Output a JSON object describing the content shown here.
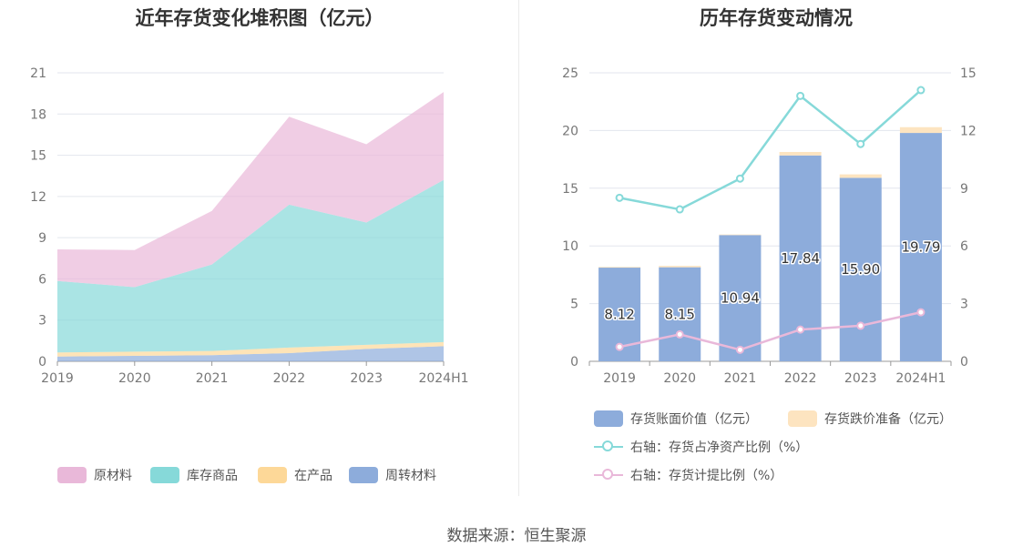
{
  "left_title": "近年存货变化堆积图（亿元）",
  "right_title": "历年存货变动情况",
  "source": "数据来源：恒生聚源",
  "chart_data": [
    {
      "type": "area",
      "title": "近年存货变化堆积图（亿元）",
      "categories": [
        "2019",
        "2020",
        "2021",
        "2022",
        "2023",
        "2024H1"
      ],
      "yticks": [
        "0",
        "3",
        "6",
        "9",
        "12",
        "15",
        "18",
        "21"
      ],
      "ylim": [
        0,
        21
      ],
      "stacked": true,
      "series": [
        {
          "name": "原材料",
          "color": "#e9b8d9",
          "values": [
            2.3,
            2.7,
            3.9,
            6.4,
            5.7,
            6.4
          ]
        },
        {
          "name": "库存商品",
          "color": "#86d9d9",
          "values": [
            5.2,
            4.7,
            6.3,
            10.4,
            8.9,
            11.8
          ]
        },
        {
          "name": "在产品",
          "color": "#fdd898",
          "values": [
            0.3,
            0.3,
            0.3,
            0.4,
            0.3,
            0.3
          ]
        },
        {
          "name": "周转材料",
          "color": "#8dacdb",
          "values": [
            0.35,
            0.4,
            0.45,
            0.6,
            0.9,
            1.1
          ]
        }
      ],
      "legend_position": "bottom",
      "grid": true
    },
    {
      "type": "bar",
      "title": "历年存货变动情况",
      "categories": [
        "2019",
        "2020",
        "2021",
        "2022",
        "2023",
        "2024H1"
      ],
      "yticks_left": [
        "0",
        "5",
        "10",
        "15",
        "20",
        "25"
      ],
      "yticks_right": [
        "0",
        "3",
        "6",
        "9",
        "12",
        "15"
      ],
      "ylim_left": [
        0,
        25
      ],
      "ylim_right": [
        0,
        15
      ],
      "series": [
        {
          "name": "存货账面价值（亿元）",
          "kind": "bar",
          "axis": "left",
          "color": "#8dacdb",
          "values": [
            8.12,
            8.15,
            10.94,
            17.84,
            15.9,
            19.79
          ],
          "labels": [
            "8.12",
            "8.15",
            "10.94",
            "17.84",
            "15.90",
            "19.79"
          ]
        },
        {
          "name": "存货跌价准备（亿元）",
          "kind": "bar",
          "axis": "left",
          "color": "#fde4c0",
          "values": [
            0.06,
            0.12,
            0.05,
            0.3,
            0.3,
            0.5
          ]
        },
        {
          "name": "右轴：存货占净资产比例（%）",
          "kind": "line",
          "axis": "right",
          "color": "#86d9d9",
          "values": [
            8.5,
            7.9,
            9.5,
            13.8,
            11.3,
            14.1
          ]
        },
        {
          "name": "右轴：存货计提比例（%）",
          "kind": "line",
          "axis": "right",
          "color": "#e9b8d9",
          "values": [
            0.75,
            1.4,
            0.6,
            1.65,
            1.85,
            2.55
          ]
        }
      ],
      "legend_position": "bottom",
      "grid": true
    }
  ]
}
